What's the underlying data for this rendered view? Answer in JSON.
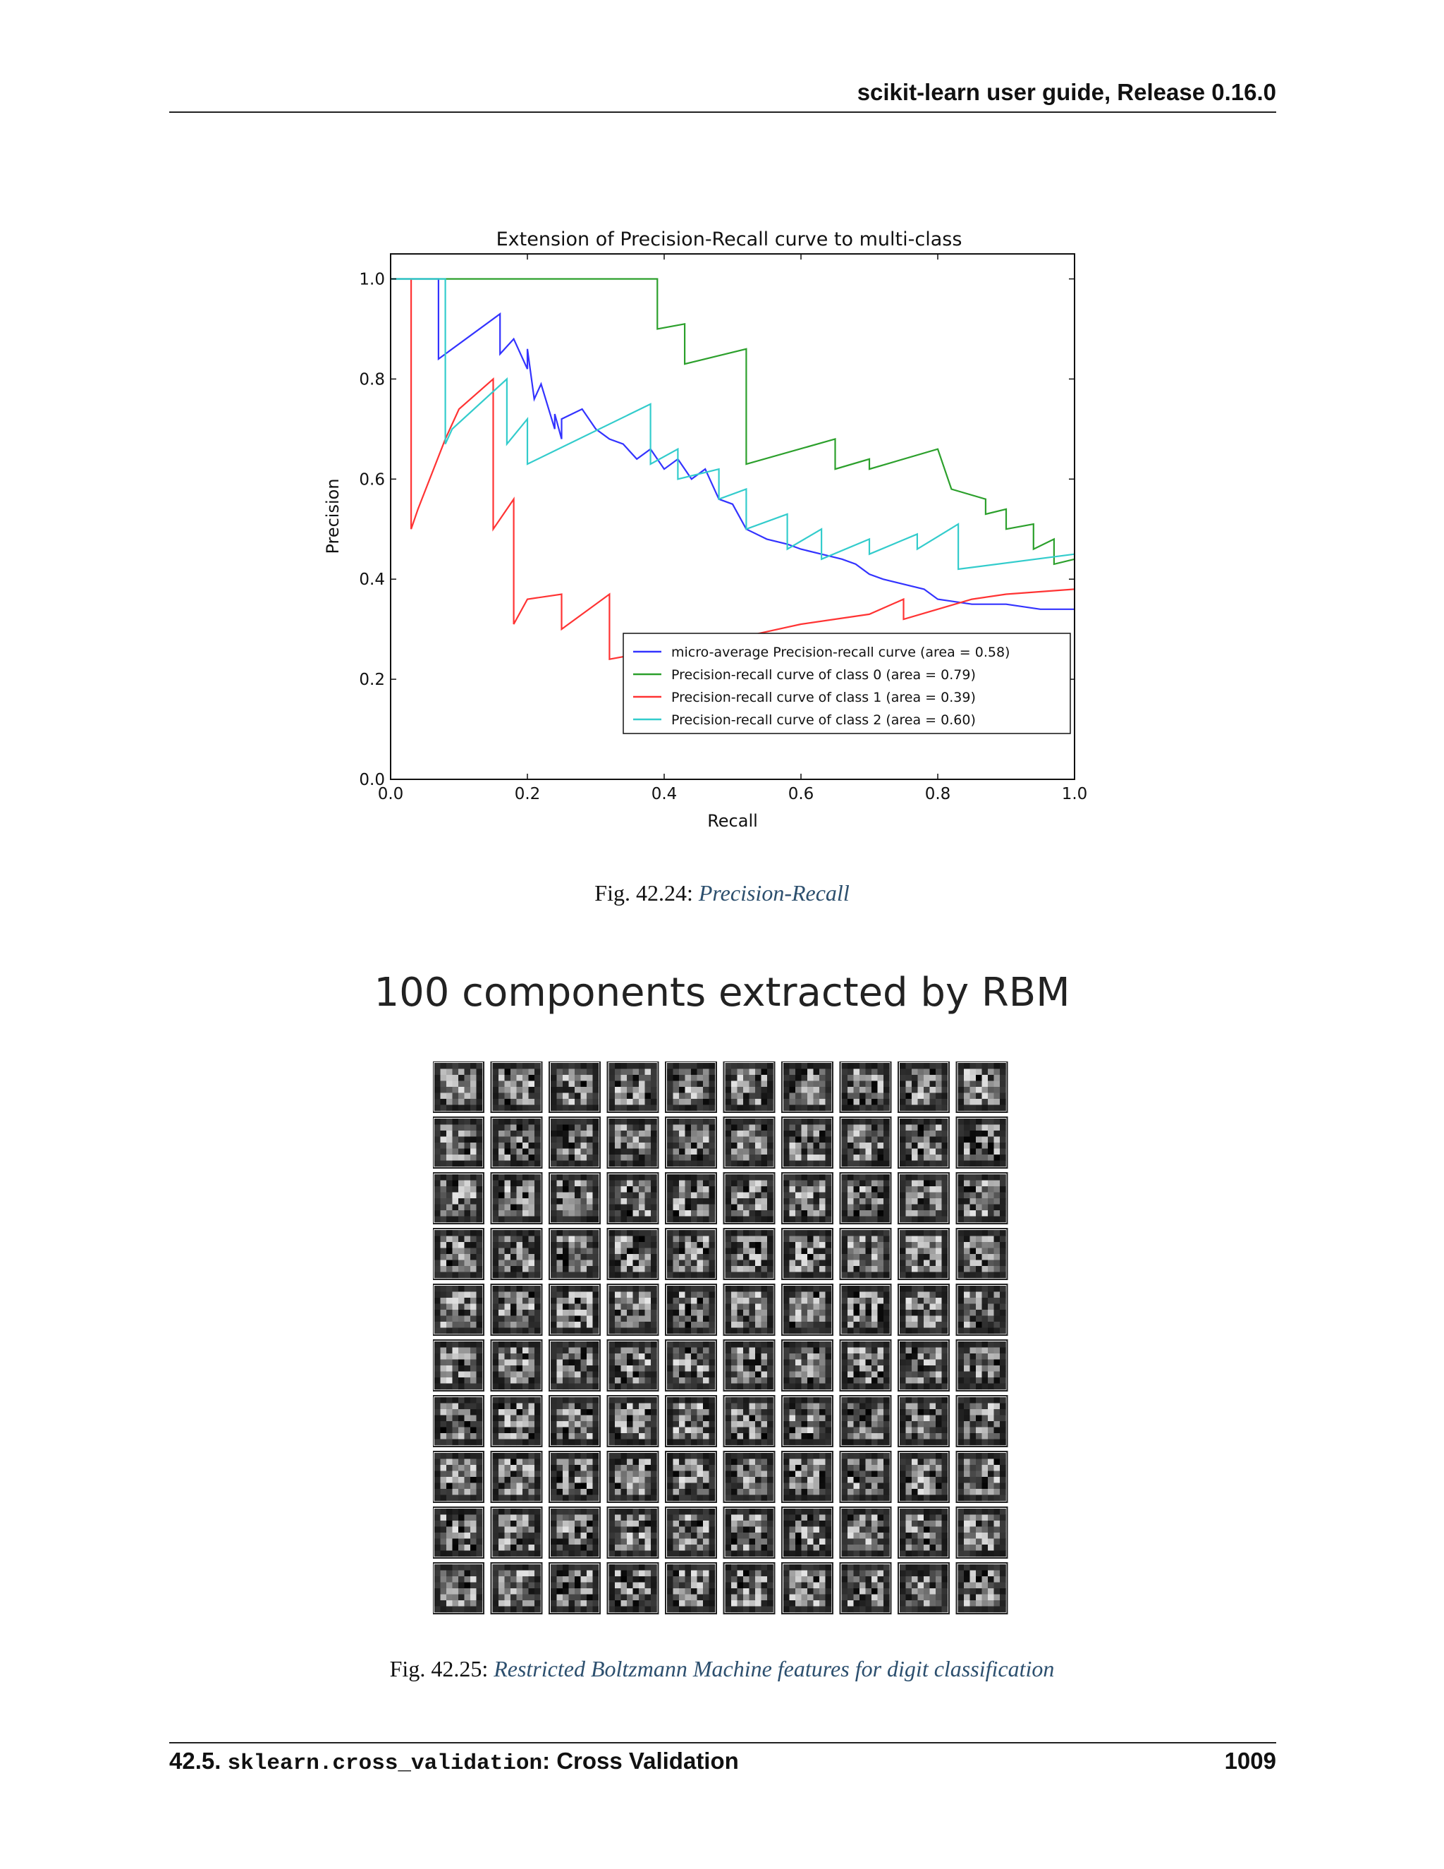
{
  "header": {
    "title": "scikit-learn user guide, Release 0.16.0"
  },
  "figure1": {
    "caption_prefix": "Fig.  42.24: ",
    "caption_link": "Precision-Recall"
  },
  "chart_data": {
    "type": "line",
    "title": "Extension of Precision-Recall curve to multi-class",
    "xlabel": "Recall",
    "ylabel": "Precision",
    "xlim": [
      0.0,
      1.0
    ],
    "ylim": [
      0.0,
      1.05
    ],
    "xticks": [
      "0.0",
      "0.2",
      "0.4",
      "0.6",
      "0.8",
      "1.0"
    ],
    "yticks": [
      "0.0",
      "0.2",
      "0.4",
      "0.6",
      "0.8",
      "1.0"
    ],
    "legend_position": "lower-right",
    "grid": false,
    "series": [
      {
        "name": "micro-average Precision-recall curve (area = 0.58)",
        "color": "#3333ff",
        "x": [
          0.0,
          0.07,
          0.07,
          0.07,
          0.16,
          0.16,
          0.18,
          0.2,
          0.2,
          0.21,
          0.22,
          0.24,
          0.24,
          0.25,
          0.25,
          0.28,
          0.3,
          0.32,
          0.34,
          0.36,
          0.38,
          0.4,
          0.42,
          0.44,
          0.46,
          0.48,
          0.5,
          0.52,
          0.55,
          0.58,
          0.6,
          0.63,
          0.66,
          0.68,
          0.7,
          0.72,
          0.75,
          0.78,
          0.8,
          0.85,
          0.9,
          0.95,
          1.0
        ],
        "y": [
          1.0,
          1.0,
          0.84,
          0.84,
          0.93,
          0.85,
          0.88,
          0.82,
          0.86,
          0.76,
          0.79,
          0.7,
          0.73,
          0.68,
          0.72,
          0.74,
          0.7,
          0.68,
          0.67,
          0.64,
          0.66,
          0.62,
          0.64,
          0.6,
          0.62,
          0.56,
          0.55,
          0.5,
          0.48,
          0.47,
          0.46,
          0.45,
          0.44,
          0.43,
          0.41,
          0.4,
          0.39,
          0.38,
          0.36,
          0.35,
          0.35,
          0.34,
          0.34
        ]
      },
      {
        "name": "Precision-recall curve of class 0 (area = 0.79)",
        "color": "#2ca02c",
        "x": [
          0.0,
          0.39,
          0.39,
          0.43,
          0.43,
          0.52,
          0.52,
          0.65,
          0.65,
          0.7,
          0.7,
          0.8,
          0.82,
          0.82,
          0.87,
          0.87,
          0.9,
          0.9,
          0.94,
          0.94,
          0.97,
          0.97,
          1.0
        ],
        "y": [
          1.0,
          1.0,
          0.9,
          0.91,
          0.83,
          0.86,
          0.63,
          0.68,
          0.62,
          0.64,
          0.62,
          0.66,
          0.58,
          0.58,
          0.56,
          0.53,
          0.54,
          0.5,
          0.51,
          0.46,
          0.48,
          0.43,
          0.44
        ]
      },
      {
        "name": "Precision-recall curve of class 1 (area = 0.39)",
        "color": "#ff3333",
        "x": [
          0.03,
          0.03,
          0.04,
          0.08,
          0.1,
          0.15,
          0.15,
          0.18,
          0.18,
          0.2,
          0.25,
          0.25,
          0.32,
          0.32,
          0.4,
          0.5,
          0.6,
          0.7,
          0.75,
          0.75,
          0.8,
          0.85,
          0.9,
          1.0
        ],
        "y": [
          1.0,
          0.5,
          0.54,
          0.68,
          0.74,
          0.8,
          0.5,
          0.56,
          0.31,
          0.36,
          0.37,
          0.3,
          0.37,
          0.24,
          0.26,
          0.28,
          0.31,
          0.33,
          0.36,
          0.32,
          0.34,
          0.36,
          0.37,
          0.38
        ]
      },
      {
        "name": "Precision-recall curve of class 2 (area = 0.60)",
        "color": "#33cccc",
        "x": [
          0.0,
          0.08,
          0.08,
          0.09,
          0.17,
          0.17,
          0.2,
          0.2,
          0.38,
          0.38,
          0.42,
          0.42,
          0.48,
          0.48,
          0.52,
          0.52,
          0.58,
          0.58,
          0.63,
          0.63,
          0.7,
          0.7,
          0.77,
          0.77,
          0.83,
          0.83,
          1.0
        ],
        "y": [
          1.0,
          1.0,
          0.67,
          0.7,
          0.8,
          0.67,
          0.72,
          0.63,
          0.75,
          0.63,
          0.66,
          0.6,
          0.62,
          0.56,
          0.58,
          0.5,
          0.53,
          0.46,
          0.5,
          0.44,
          0.48,
          0.45,
          0.49,
          0.46,
          0.51,
          0.42,
          0.45
        ]
      }
    ]
  },
  "figure2": {
    "title": "100 components extracted by RBM",
    "caption_prefix": "Fig.  42.25: ",
    "caption_link": "Restricted Boltzmann Machine features for digit classification",
    "grid_rows": 10,
    "grid_cols": 10
  },
  "footer": {
    "section_number": "42.5. ",
    "module": "sklearn.cross_validation",
    "section_title": ": Cross Validation",
    "page_number": "1009"
  }
}
